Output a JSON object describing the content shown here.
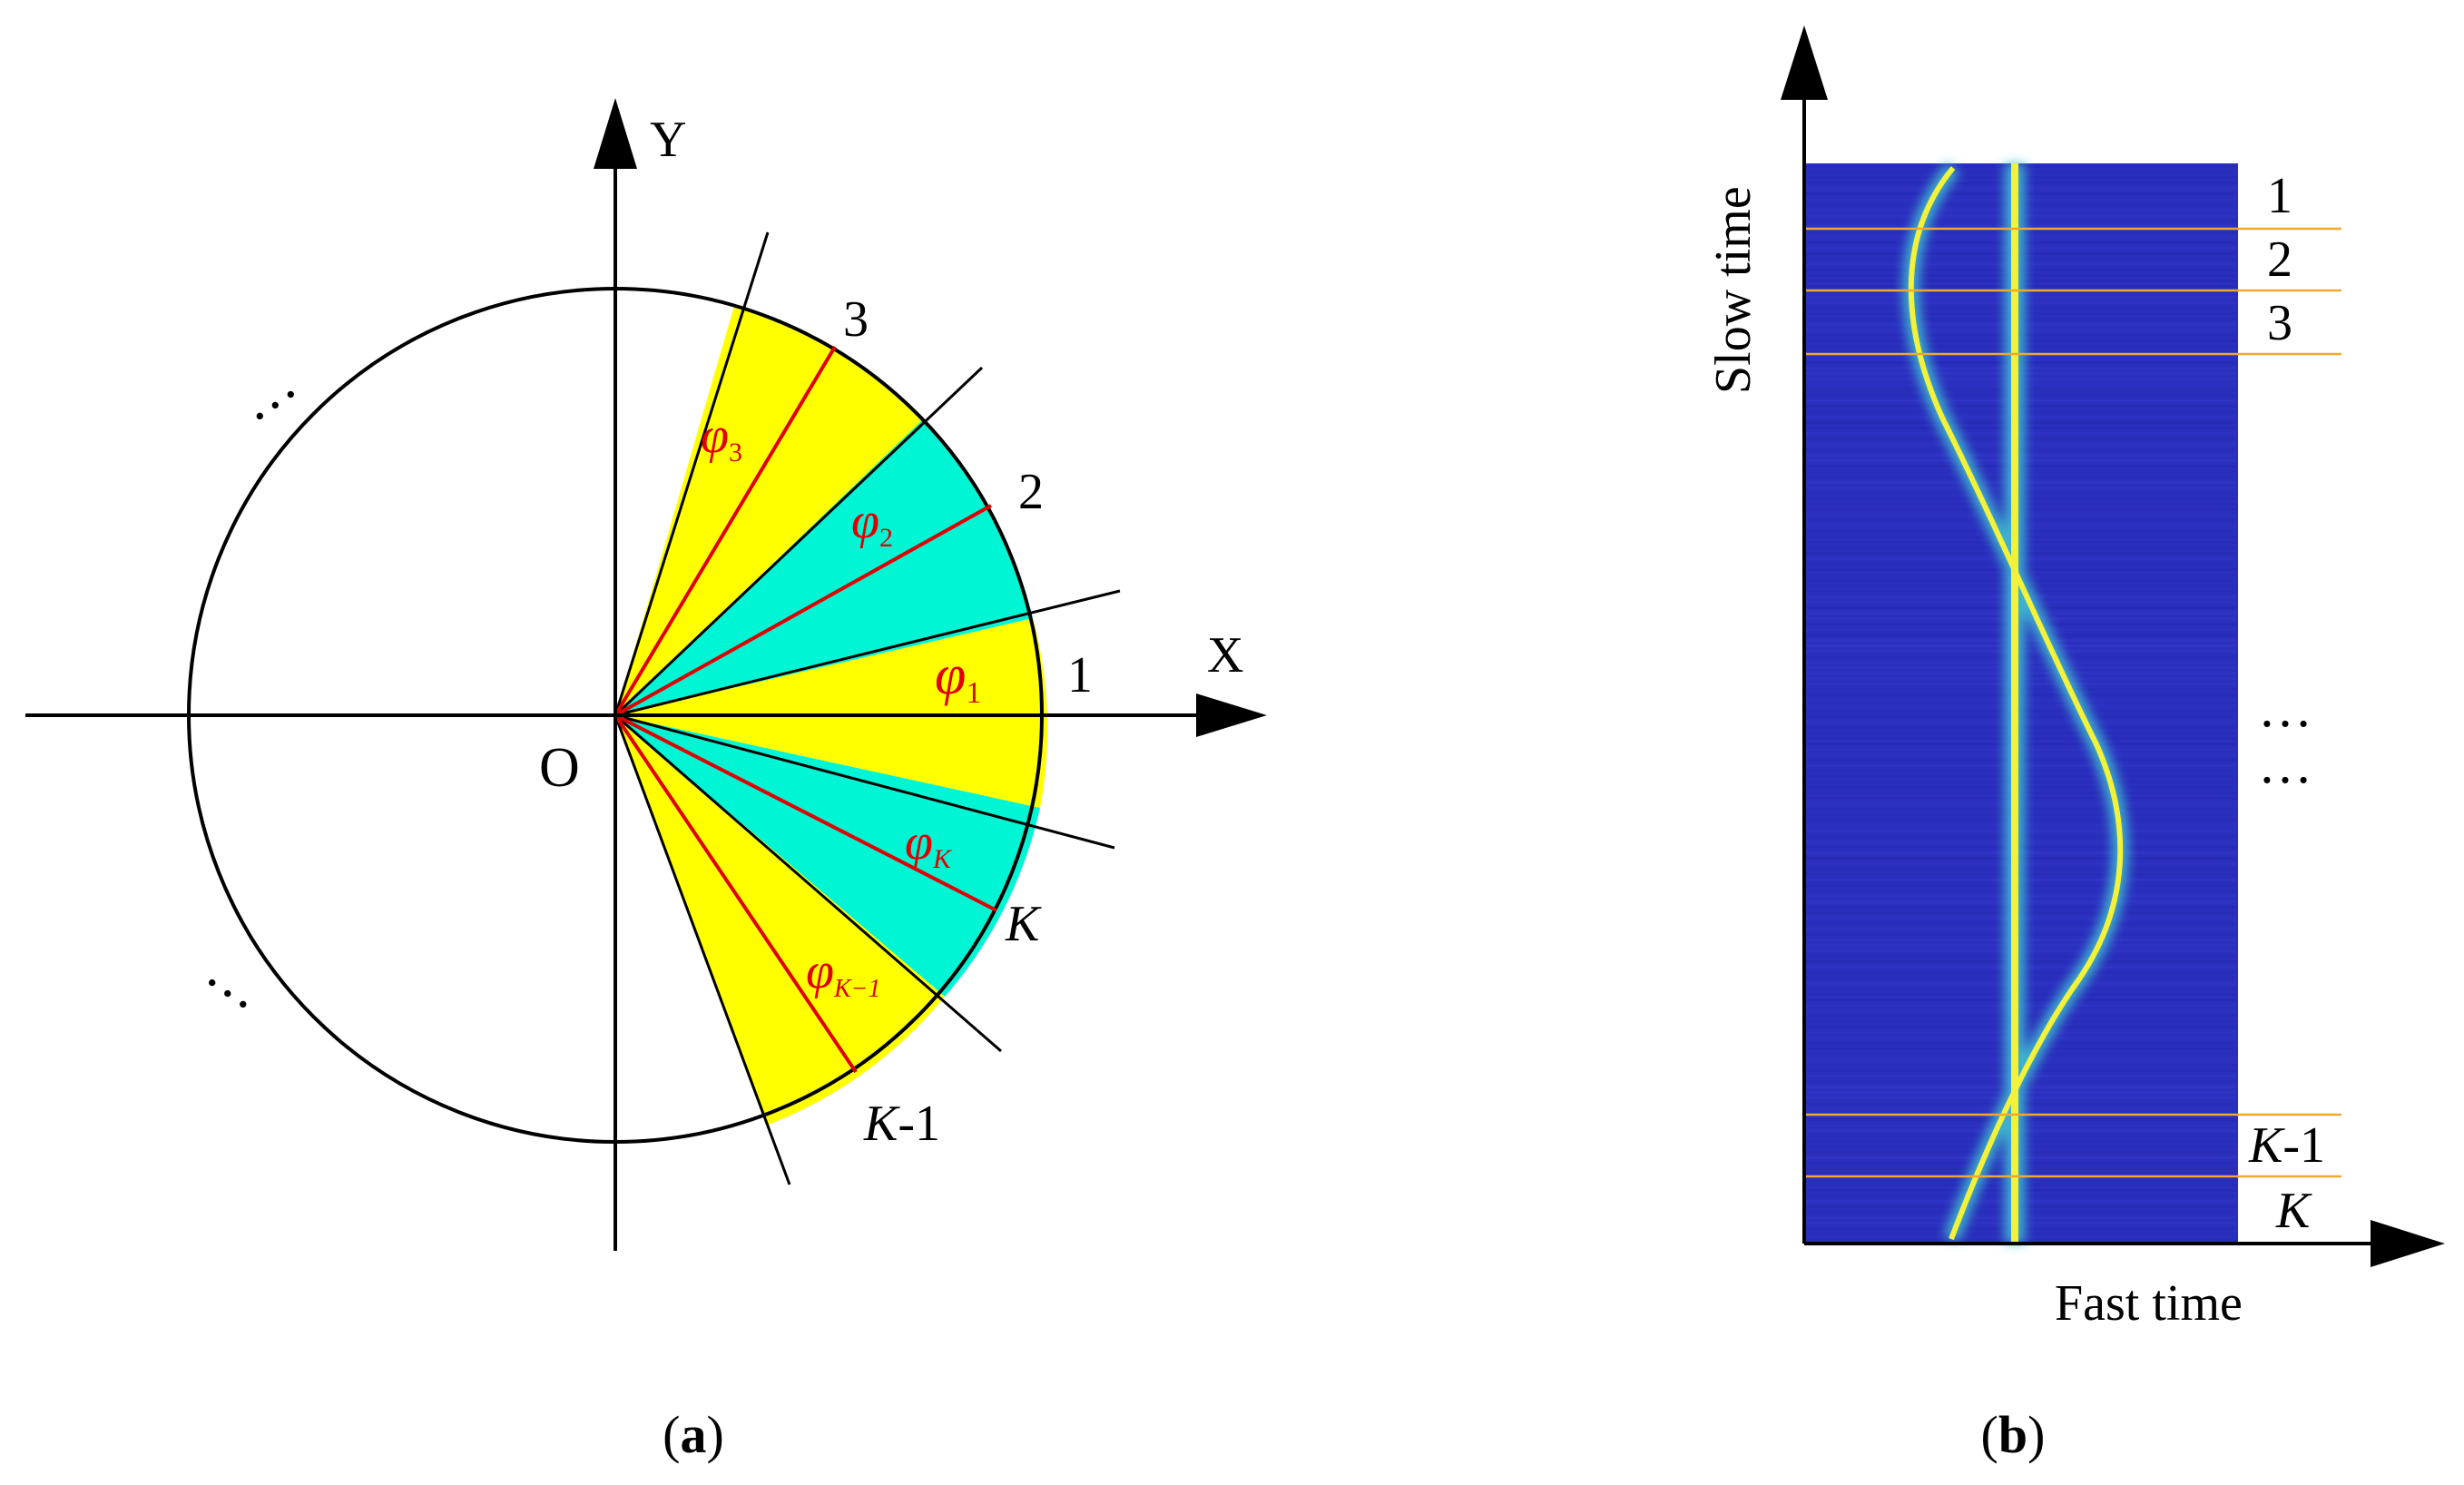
{
  "panel_a": {
    "axis_x_label": "X",
    "axis_y_label": "Y",
    "origin_label": "O",
    "sector_labels": [
      "3",
      "2",
      "1",
      "K",
      "K-1"
    ],
    "sector_k_label": "K",
    "sector_k1_label": "K",
    "sector_k1_suffix": "-1",
    "angle_labels": {
      "phi": "φ",
      "sub_1": "1",
      "sub_2": "2",
      "sub_3": "3",
      "sub_K": "K",
      "sub_K1": "K−1"
    },
    "ellipsis": "…",
    "caption_open": "(",
    "caption_letter": "a",
    "caption_close": ")",
    "colors": {
      "yellow": "#ffff00",
      "cyan": "#00f5d4",
      "red": "#e00000"
    }
  },
  "panel_b": {
    "y_axis_label": "Slow time",
    "x_axis_label": "Fast time",
    "segment_labels": [
      "1",
      "2",
      "3"
    ],
    "k1_label": "K",
    "k1_suffix": "-1",
    "k_label": "K",
    "ellipsis": "…",
    "caption_open": "(",
    "caption_letter": "b",
    "caption_close": ")",
    "colors": {
      "background": "#2b2fbe",
      "trace": "#f2f23a",
      "divider": "#f0a830"
    }
  }
}
